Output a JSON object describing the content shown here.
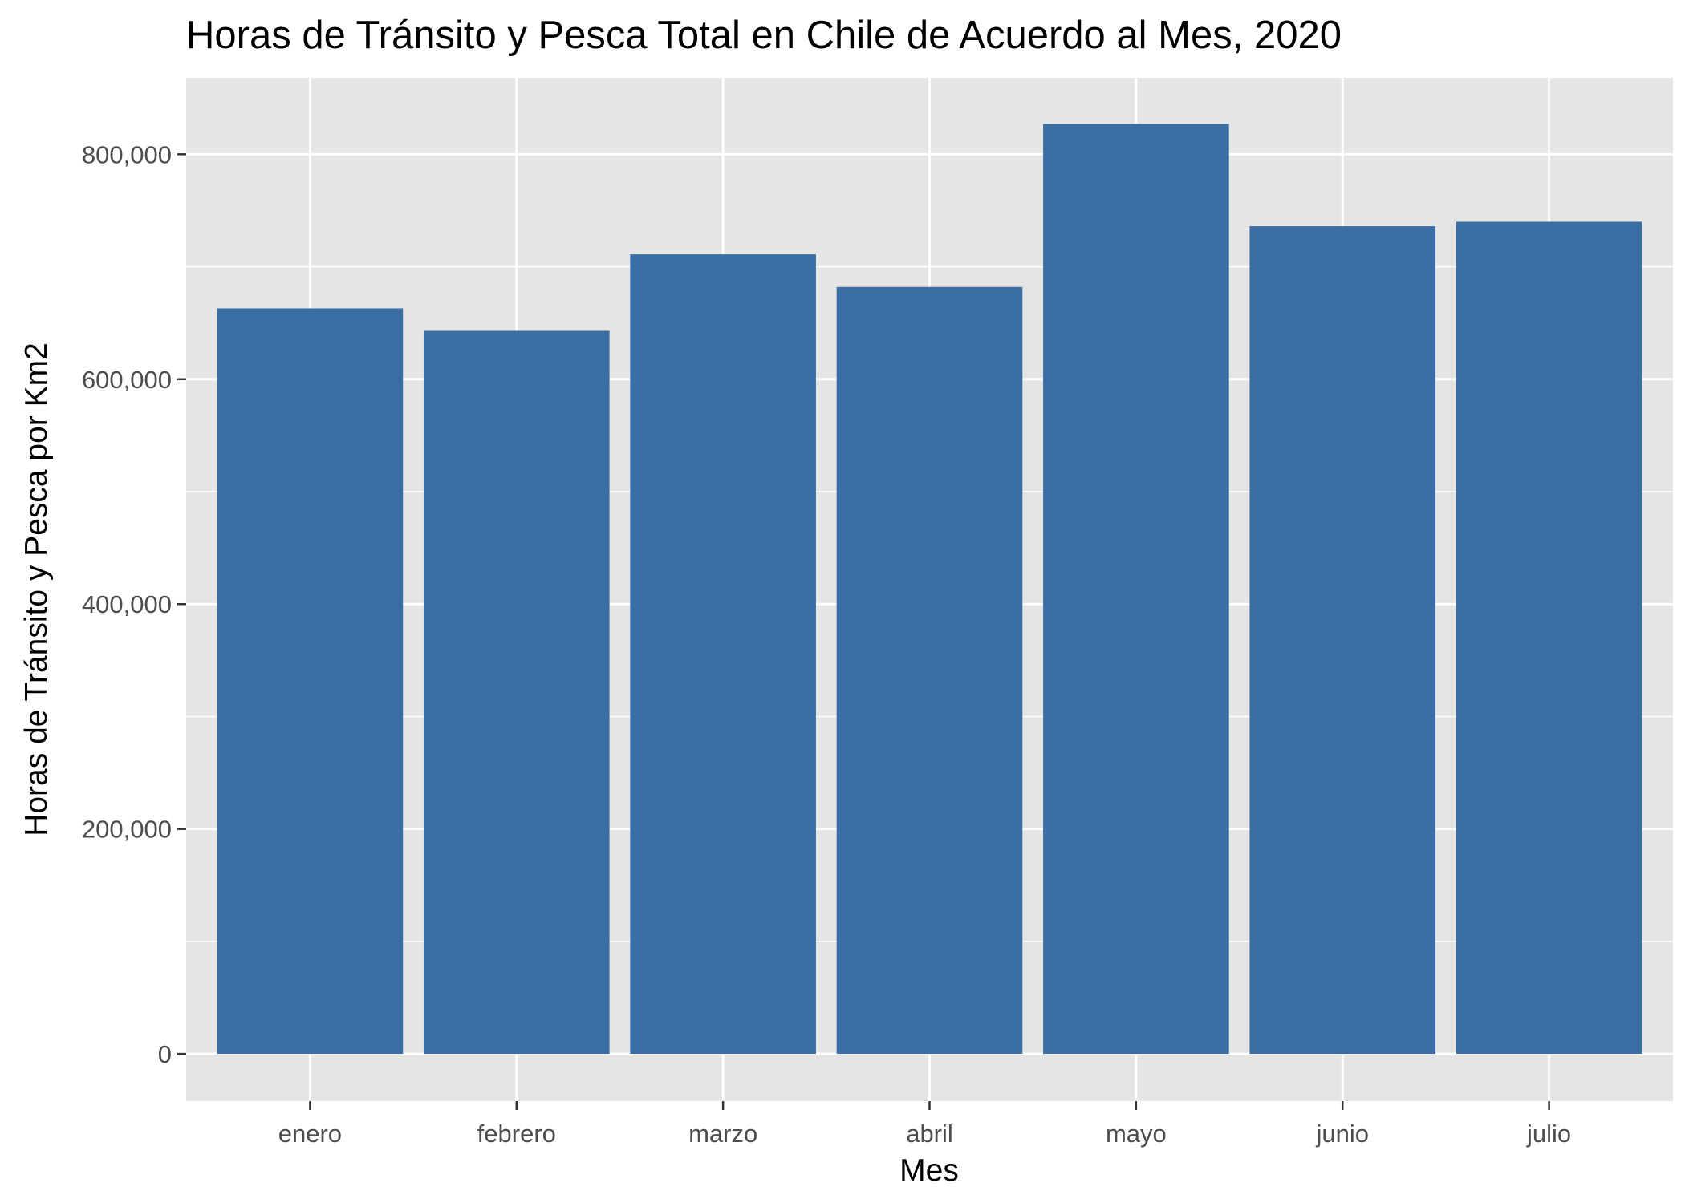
{
  "chart_data": {
    "type": "bar",
    "title": "Horas de Tránsito y Pesca Total en Chile de Acuerdo al Mes, 2020",
    "xlabel": "Mes",
    "ylabel": "Horas de Tránsito y Pesca por Km2",
    "categories": [
      "enero",
      "febrero",
      "marzo",
      "abril",
      "mayo",
      "junio",
      "julio"
    ],
    "values": [
      663000,
      643000,
      711000,
      682000,
      827000,
      736000,
      740000
    ],
    "ylim": [
      -42000,
      868000
    ],
    "yticks": [
      0,
      200000,
      400000,
      600000,
      800000
    ],
    "ytick_labels": [
      "0",
      "200,000",
      "400,000",
      "600,000",
      "800,000"
    ],
    "grid": true,
    "legend": "none",
    "colors": {
      "bar": "#3a6ea5",
      "panel": "#e5e5e5",
      "grid": "#ffffff",
      "tick_text": "#4d4d4d",
      "tick_mark": "#333333"
    }
  }
}
